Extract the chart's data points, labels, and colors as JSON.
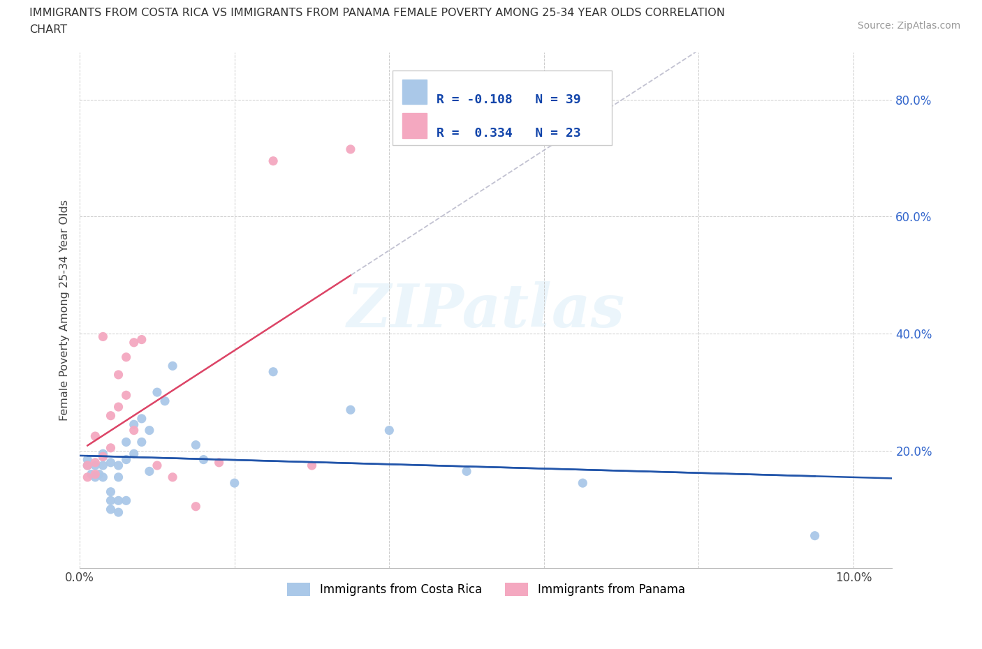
{
  "title_line1": "IMMIGRANTS FROM COSTA RICA VS IMMIGRANTS FROM PANAMA FEMALE POVERTY AMONG 25-34 YEAR OLDS CORRELATION",
  "title_line2": "CHART",
  "source": "Source: ZipAtlas.com",
  "ylabel": "Female Poverty Among 25-34 Year Olds",
  "xlim": [
    0.0,
    0.105
  ],
  "ylim": [
    0.0,
    0.88
  ],
  "x_ticks": [
    0.0,
    0.02,
    0.04,
    0.06,
    0.08,
    0.1
  ],
  "y_ticks": [
    0.0,
    0.2,
    0.4,
    0.6,
    0.8
  ],
  "y_tick_labels": [
    "",
    "20.0%",
    "40.0%",
    "60.0%",
    "80.0%"
  ],
  "x_tick_labels": [
    "0.0%",
    "",
    "",
    "",
    "",
    "10.0%"
  ],
  "grid_color": "#cccccc",
  "background_color": "#ffffff",
  "costa_rica_dot_color": "#aac8e8",
  "panama_dot_color": "#f4a8c0",
  "costa_rica_line_color": "#2255aa",
  "panama_line_color": "#dd4466",
  "dashed_line_color": "#bbbbcc",
  "R_cr": -0.108,
  "N_cr": 39,
  "R_pan": 0.334,
  "N_pan": 23,
  "watermark": "ZIPatlas",
  "legend_cr_label": "Immigrants from Costa Rica",
  "legend_pan_label": "Immigrants from Panama",
  "costa_rica_x": [
    0.001,
    0.001,
    0.0015,
    0.002,
    0.002,
    0.0025,
    0.003,
    0.003,
    0.003,
    0.003,
    0.004,
    0.004,
    0.004,
    0.004,
    0.005,
    0.005,
    0.005,
    0.005,
    0.006,
    0.006,
    0.006,
    0.007,
    0.007,
    0.008,
    0.008,
    0.009,
    0.009,
    0.01,
    0.011,
    0.012,
    0.015,
    0.016,
    0.02,
    0.025,
    0.035,
    0.04,
    0.05,
    0.065,
    0.095
  ],
  "costa_rica_y": [
    0.175,
    0.185,
    0.16,
    0.155,
    0.175,
    0.16,
    0.155,
    0.175,
    0.19,
    0.195,
    0.1,
    0.115,
    0.13,
    0.18,
    0.095,
    0.115,
    0.155,
    0.175,
    0.115,
    0.185,
    0.215,
    0.195,
    0.245,
    0.215,
    0.255,
    0.165,
    0.235,
    0.3,
    0.285,
    0.345,
    0.21,
    0.185,
    0.145,
    0.335,
    0.27,
    0.235,
    0.165,
    0.145,
    0.055
  ],
  "panama_x": [
    0.001,
    0.001,
    0.002,
    0.002,
    0.002,
    0.003,
    0.003,
    0.004,
    0.004,
    0.005,
    0.005,
    0.006,
    0.006,
    0.007,
    0.007,
    0.008,
    0.01,
    0.012,
    0.015,
    0.018,
    0.025,
    0.03,
    0.035
  ],
  "panama_y": [
    0.155,
    0.175,
    0.16,
    0.18,
    0.225,
    0.19,
    0.395,
    0.205,
    0.26,
    0.275,
    0.33,
    0.295,
    0.36,
    0.235,
    0.385,
    0.39,
    0.175,
    0.155,
    0.105,
    0.18,
    0.695,
    0.175,
    0.715
  ]
}
